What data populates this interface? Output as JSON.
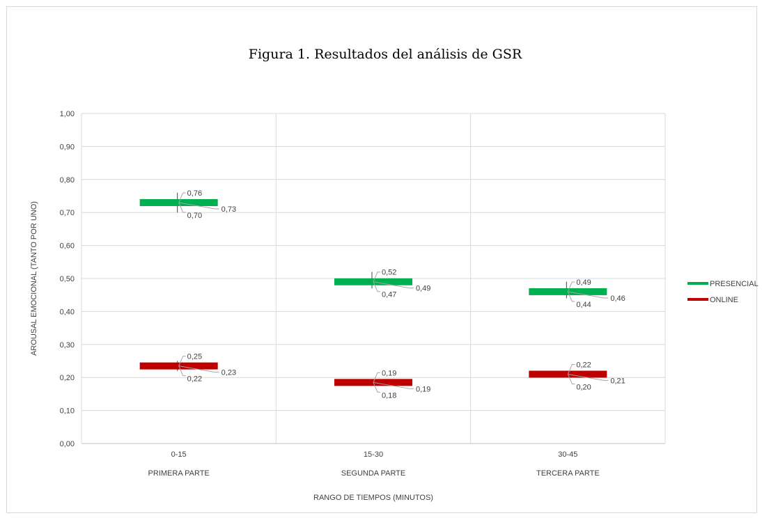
{
  "chart_data": {
    "type": "stock",
    "title": "Figura 1. Resultados del análisis de GSR",
    "xlabel": "RANGO DE TIEMPOS (MINUTOS)",
    "ylabel": "AROUSAL EMOCIONAL (TANTO POR UNO)",
    "ylim": [
      0,
      1
    ],
    "y_ticks": [
      "0,00",
      "0,10",
      "0,20",
      "0,30",
      "0,40",
      "0,50",
      "0,60",
      "0,70",
      "0,80",
      "0,90",
      "1,00"
    ],
    "grid": true,
    "legend_position": "right",
    "categories": [
      {
        "range": "0-15",
        "part": "PRIMERA PARTE"
      },
      {
        "range": "15-30",
        "part": "SEGUNDA PARTE"
      },
      {
        "range": "30-45",
        "part": "TERCERA PARTE"
      }
    ],
    "series": [
      {
        "name": "PRESENCIAL",
        "color": "#00b050",
        "points": [
          {
            "high": 0.76,
            "low": 0.7,
            "value": 0.73,
            "high_label": "0,76",
            "low_label": "0,70",
            "value_label": "0,73"
          },
          {
            "high": 0.52,
            "low": 0.47,
            "value": 0.49,
            "high_label": "0,52",
            "low_label": "0,47",
            "value_label": "0,49"
          },
          {
            "high": 0.49,
            "low": 0.44,
            "value": 0.46,
            "high_label": "0,49",
            "low_label": "0,44",
            "value_label": "0,46"
          }
        ]
      },
      {
        "name": "ONLINE",
        "color": "#c00000",
        "points": [
          {
            "high": 0.25,
            "low": 0.22,
            "value": 0.235,
            "high_label": "0,25",
            "low_label": "0,22",
            "value_label": "0,23"
          },
          {
            "high": 0.19,
            "low": 0.18,
            "value": 0.185,
            "high_label": "0,19",
            "low_label": "0,18",
            "value_label": "0,19"
          },
          {
            "high": 0.22,
            "low": 0.2,
            "value": 0.21,
            "high_label": "0,22",
            "low_label": "0,20",
            "value_label": "0,21"
          }
        ]
      }
    ]
  }
}
